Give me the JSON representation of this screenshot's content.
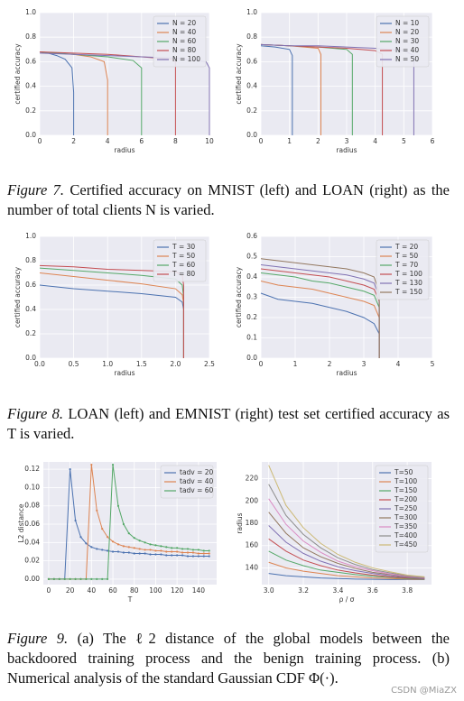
{
  "chart_data": [
    {
      "type": "line",
      "xlabel": "radius",
      "ylabel": "certified accuracy",
      "xlim": [
        0,
        10
      ],
      "ylim": [
        0,
        1
      ],
      "xticks": [
        0,
        2,
        4,
        6,
        8,
        10
      ],
      "yticks": [
        {
          "value": 0,
          "label": "0.0"
        },
        0.2,
        0.4,
        0.6,
        0.8,
        {
          "value": 1,
          "label": "1.0"
        }
      ],
      "grid": true,
      "legend": "upper right",
      "series": [
        {
          "name": "N = 20",
          "color": "#4c72b0",
          "x": [
            0,
            0.5,
            1,
            1.5,
            1.9,
            2,
            2
          ],
          "values": [
            0.68,
            0.67,
            0.65,
            0.62,
            0.55,
            0.35,
            0
          ]
        },
        {
          "name": "N = 40",
          "color": "#dd8452",
          "x": [
            0,
            1,
            2,
            3,
            3.8,
            4,
            4
          ],
          "values": [
            0.68,
            0.67,
            0.66,
            0.64,
            0.6,
            0.45,
            0
          ]
        },
        {
          "name": "N = 60",
          "color": "#55a868",
          "x": [
            0,
            2,
            4,
            5.5,
            6,
            6
          ],
          "values": [
            0.68,
            0.66,
            0.64,
            0.61,
            0.55,
            0
          ]
        },
        {
          "name": "N = 80",
          "color": "#c44e52",
          "x": [
            0,
            2,
            4,
            6,
            7.8,
            8,
            8
          ],
          "values": [
            0.68,
            0.67,
            0.66,
            0.64,
            0.62,
            0.6,
            0
          ]
        },
        {
          "name": "N = 100",
          "color": "#8172b3",
          "x": [
            0,
            2,
            4,
            6,
            8,
            9.8,
            10,
            10
          ],
          "values": [
            0.67,
            0.66,
            0.65,
            0.64,
            0.63,
            0.6,
            0.55,
            0
          ]
        }
      ]
    },
    {
      "type": "line",
      "xlabel": "radius",
      "ylabel": "certified accuracy",
      "xlim": [
        0,
        6
      ],
      "ylim": [
        0,
        1
      ],
      "xticks": [
        0,
        1,
        2,
        3,
        4,
        5,
        6
      ],
      "yticks": [
        {
          "value": 0,
          "label": "0.0"
        },
        0.2,
        0.4,
        0.6,
        0.8,
        {
          "value": 1,
          "label": "1.0"
        }
      ],
      "grid": true,
      "legend": "upper right",
      "series": [
        {
          "name": "N = 10",
          "color": "#4c72b0",
          "x": [
            0,
            0.5,
            1,
            1.1,
            1.1
          ],
          "values": [
            0.73,
            0.72,
            0.7,
            0.65,
            0
          ]
        },
        {
          "name": "N = 20",
          "color": "#dd8452",
          "x": [
            0,
            1,
            2,
            2.1,
            2.1
          ],
          "values": [
            0.74,
            0.73,
            0.71,
            0.66,
            0
          ]
        },
        {
          "name": "N = 30",
          "color": "#55a868",
          "x": [
            0,
            1,
            2,
            3,
            3.2,
            3.2
          ],
          "values": [
            0.74,
            0.73,
            0.72,
            0.7,
            0.66,
            0
          ]
        },
        {
          "name": "N = 40",
          "color": "#c44e52",
          "x": [
            0,
            1,
            2,
            3,
            4,
            4.25,
            4.25
          ],
          "values": [
            0.74,
            0.73,
            0.72,
            0.71,
            0.69,
            0.66,
            0
          ]
        },
        {
          "name": "N = 50",
          "color": "#8172b3",
          "x": [
            0,
            1,
            2,
            3,
            4,
            5,
            5.35,
            5.35
          ],
          "values": [
            0.74,
            0.73,
            0.73,
            0.72,
            0.71,
            0.69,
            0.65,
            0
          ]
        }
      ]
    },
    {
      "type": "line",
      "xlabel": "radius",
      "ylabel": "certified accuracy",
      "xlim": [
        0,
        2.5
      ],
      "ylim": [
        0,
        1
      ],
      "xticks": [
        {
          "value": 0,
          "label": "0.0"
        },
        0.5,
        {
          "value": 1,
          "label": "1.0"
        },
        1.5,
        {
          "value": 2,
          "label": "2.0"
        },
        2.5
      ],
      "yticks": [
        {
          "value": 0,
          "label": "0.0"
        },
        0.2,
        0.4,
        0.6,
        0.8,
        {
          "value": 1,
          "label": "1.0"
        }
      ],
      "grid": true,
      "legend": "upper right",
      "x": [
        0,
        0.5,
        1,
        1.5,
        2,
        2.1,
        2.12,
        2.12
      ],
      "series": [
        {
          "name": "T = 30",
          "color": "#4c72b0",
          "values": [
            0.6,
            0.57,
            0.55,
            0.53,
            0.5,
            0.46,
            0.4,
            0
          ]
        },
        {
          "name": "T = 50",
          "color": "#dd8452",
          "values": [
            0.7,
            0.67,
            0.64,
            0.61,
            0.57,
            0.52,
            0.45,
            0
          ]
        },
        {
          "name": "T = 60",
          "color": "#55a868",
          "values": [
            0.74,
            0.72,
            0.7,
            0.68,
            0.65,
            0.6,
            0.5,
            0
          ]
        },
        {
          "name": "T = 80",
          "color": "#c44e52",
          "values": [
            0.76,
            0.75,
            0.73,
            0.72,
            0.71,
            0.68,
            0.6,
            0
          ]
        }
      ]
    },
    {
      "type": "line",
      "xlabel": "radius",
      "ylabel": "certified accuracy",
      "xlim": [
        0,
        5
      ],
      "ylim": [
        0,
        0.6
      ],
      "xticks": [
        0,
        1,
        2,
        3,
        4,
        5
      ],
      "yticks": [
        {
          "value": 0,
          "label": "0.0"
        },
        0.1,
        0.2,
        0.3,
        0.4,
        0.5,
        0.6
      ],
      "grid": true,
      "legend": "upper right",
      "x": [
        0,
        0.5,
        1,
        1.5,
        2,
        2.5,
        3,
        3.3,
        3.45,
        3.45
      ],
      "series": [
        {
          "name": "T = 20",
          "color": "#4c72b0",
          "values": [
            0.32,
            0.29,
            0.28,
            0.27,
            0.25,
            0.23,
            0.2,
            0.17,
            0.12,
            0
          ]
        },
        {
          "name": "T = 50",
          "color": "#dd8452",
          "values": [
            0.38,
            0.36,
            0.35,
            0.34,
            0.32,
            0.3,
            0.28,
            0.26,
            0.2,
            0
          ]
        },
        {
          "name": "T = 70",
          "color": "#55a868",
          "values": [
            0.42,
            0.41,
            0.4,
            0.38,
            0.37,
            0.35,
            0.33,
            0.31,
            0.25,
            0
          ]
        },
        {
          "name": "T = 100",
          "color": "#c44e52",
          "values": [
            0.44,
            0.43,
            0.42,
            0.41,
            0.4,
            0.38,
            0.36,
            0.34,
            0.28,
            0
          ]
        },
        {
          "name": "T = 130",
          "color": "#8172b3",
          "values": [
            0.46,
            0.45,
            0.44,
            0.43,
            0.42,
            0.41,
            0.39,
            0.37,
            0.3,
            0
          ]
        },
        {
          "name": "T = 150",
          "color": "#937860",
          "values": [
            0.49,
            0.48,
            0.47,
            0.46,
            0.45,
            0.44,
            0.42,
            0.4,
            0.32,
            0
          ]
        }
      ]
    },
    {
      "type": "line",
      "xlabel": "T",
      "ylabel": "L2 distance",
      "xlim": [
        -5,
        157
      ],
      "ylim": [
        -0.006,
        0.128
      ],
      "xticks": [
        0,
        20,
        40,
        60,
        80,
        100,
        120,
        140
      ],
      "yticks": [
        {
          "value": 0,
          "label": "0.00"
        },
        0.02,
        0.04,
        0.06,
        0.08,
        {
          "value": 0.1,
          "label": "0.10"
        },
        0.12
      ],
      "grid": true,
      "legend": "upper right",
      "markers": true,
      "x": [
        0,
        5,
        10,
        15,
        20,
        25,
        30,
        35,
        40,
        45,
        50,
        55,
        60,
        65,
        70,
        75,
        80,
        85,
        90,
        95,
        100,
        105,
        110,
        115,
        120,
        125,
        130,
        135,
        140,
        145,
        150
      ],
      "series": [
        {
          "name": "tadv = 20",
          "color": "#4c72b0",
          "values": [
            0,
            0,
            0,
            0,
            0.12,
            0.064,
            0.046,
            0.039,
            0.035,
            0.033,
            0.032,
            0.031,
            0.03,
            0.03,
            0.029,
            0.029,
            0.028,
            0.028,
            0.028,
            0.027,
            0.027,
            0.027,
            0.026,
            0.026,
            0.026,
            0.026,
            0.025,
            0.025,
            0.025,
            0.025,
            0.025
          ]
        },
        {
          "name": "tadv = 40",
          "color": "#dd8452",
          "values": [
            0,
            0,
            0,
            0,
            0,
            0,
            0,
            0,
            0.125,
            0.075,
            0.055,
            0.046,
            0.041,
            0.038,
            0.036,
            0.035,
            0.034,
            0.033,
            0.032,
            0.032,
            0.031,
            0.031,
            0.03,
            0.03,
            0.03,
            0.029,
            0.029,
            0.029,
            0.028,
            0.028,
            0.028
          ]
        },
        {
          "name": "tadv = 60",
          "color": "#55a868",
          "values": [
            0,
            0,
            0,
            0,
            0,
            0,
            0,
            0,
            0,
            0,
            0,
            0,
            0.125,
            0.08,
            0.06,
            0.05,
            0.045,
            0.042,
            0.04,
            0.038,
            0.037,
            0.036,
            0.035,
            0.034,
            0.034,
            0.033,
            0.033,
            0.032,
            0.032,
            0.031,
            0.031
          ]
        }
      ]
    },
    {
      "type": "line",
      "xlabel": "ρ / σ",
      "ylabel": "radius",
      "xlim": [
        2.96,
        3.94
      ],
      "ylim": [
        125,
        235
      ],
      "xticks": [
        {
          "value": 3,
          "label": "3.0"
        },
        3.2,
        3.4,
        3.6,
        3.8
      ],
      "yticks": [
        140,
        160,
        180,
        200,
        220
      ],
      "grid": true,
      "legend": "upper right",
      "x": [
        3,
        3.1,
        3.2,
        3.3,
        3.4,
        3.5,
        3.6,
        3.7,
        3.8,
        3.9
      ],
      "series": [
        {
          "name": "T=50",
          "color": "#4c72b0",
          "values": [
            135,
            133,
            132,
            131,
            130.5,
            130,
            129.8,
            129.6,
            129.5,
            129.4
          ]
        },
        {
          "name": "T=100",
          "color": "#dd8452",
          "values": [
            145,
            140,
            137,
            135,
            133,
            132,
            131,
            130.5,
            130,
            129.7
          ]
        },
        {
          "name": "T=150",
          "color": "#55a868",
          "values": [
            155,
            147,
            142,
            138,
            136,
            134,
            132.5,
            131.5,
            130.5,
            130
          ]
        },
        {
          "name": "T=200",
          "color": "#c44e52",
          "values": [
            166,
            155,
            147,
            142,
            138,
            135.5,
            133.5,
            132,
            131,
            130.3
          ]
        },
        {
          "name": "T=250",
          "color": "#8172b3",
          "values": [
            178,
            163,
            153,
            146,
            141,
            137.5,
            135,
            133,
            131.5,
            130.5
          ]
        },
        {
          "name": "T=300",
          "color": "#937860",
          "values": [
            190,
            171,
            158,
            150,
            144,
            139.5,
            136,
            134,
            132,
            131
          ]
        },
        {
          "name": "T=350",
          "color": "#da8bc3",
          "values": [
            202,
            179,
            164,
            154,
            146,
            141,
            137.5,
            134.5,
            132.5,
            131.2
          ]
        },
        {
          "name": "T=400",
          "color": "#8c8c8c",
          "values": [
            215,
            187,
            170,
            158,
            149,
            143,
            138.5,
            135.5,
            133,
            131.5
          ]
        },
        {
          "name": "T=450",
          "color": "#ccb974",
          "values": [
            232,
            196,
            176,
            162,
            152,
            145,
            140,
            136.5,
            133.5,
            132
          ]
        }
      ]
    }
  ],
  "captions": [
    {
      "label": "Figure 7.",
      "text": "Certified accuracy on MNIST (left) and LOAN (right) as the number of total clients N is varied."
    },
    {
      "label": "Figure 8.",
      "text": "LOAN (left) and EMNIST (right) test set certified accuracy as T is varied."
    },
    {
      "label": "Figure 9.",
      "text": "(a) The ℓ2 distance of the global models between the backdoored training process and the benign training process. (b) Numerical analysis of the standard Gaussian CDF Φ(·)."
    }
  ],
  "watermark": "CSDN @MiaZX"
}
